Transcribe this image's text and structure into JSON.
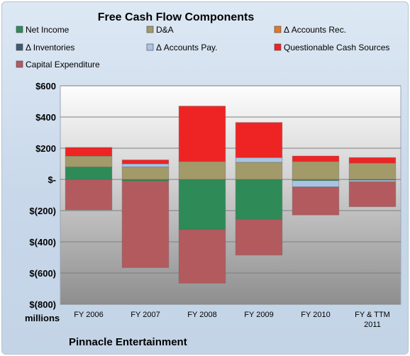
{
  "chart_data": {
    "type": "bar",
    "stacked": true,
    "title": "Free Cash Flow Components",
    "units_label": "millions",
    "footer": "Pinnacle Entertainment",
    "categories": [
      [
        "FY 2006"
      ],
      [
        "FY 2007"
      ],
      [
        "FY 2008"
      ],
      [
        "FY 2009"
      ],
      [
        "FY 2010"
      ],
      [
        "FY & TTM",
        "2011"
      ]
    ],
    "ylim": [
      -800,
      600
    ],
    "yticks": [
      600,
      400,
      200,
      0,
      -200,
      -400,
      -600,
      -800
    ],
    "ytick_labels": [
      "$600",
      "$400",
      "$200",
      "$-",
      "$(200)",
      "$(400)",
      "$(600)",
      "$(800)"
    ],
    "grid": true,
    "legend_position": "top",
    "series": [
      {
        "name": "Net Income",
        "color": "#2e8b57",
        "values": [
          80,
          -10,
          -320,
          -255,
          -8,
          -5
        ]
      },
      {
        "name": "D&A",
        "color": "#a39a6a",
        "values": [
          70,
          80,
          115,
          110,
          115,
          105
        ]
      },
      {
        "name": "Δ Accounts Rec.",
        "color": "#e0782a",
        "values": [
          0,
          0,
          0,
          0,
          0,
          0
        ]
      },
      {
        "name": "Δ Inventories",
        "color": "#3f5873",
        "values": [
          0,
          0,
          0,
          0,
          0,
          0
        ]
      },
      {
        "name": "Δ Accounts Pay.",
        "color": "#a9c3e3",
        "values": [
          0,
          20,
          0,
          30,
          -40,
          -10
        ]
      },
      {
        "name": "Questionable Cash Sources",
        "color": "#ee2424",
        "values": [
          55,
          25,
          355,
          225,
          35,
          35
        ]
      },
      {
        "name": "Capital Expenditure",
        "color": "#b35a5f",
        "values": [
          -195,
          -555,
          -345,
          -230,
          -180,
          -160
        ]
      }
    ]
  }
}
